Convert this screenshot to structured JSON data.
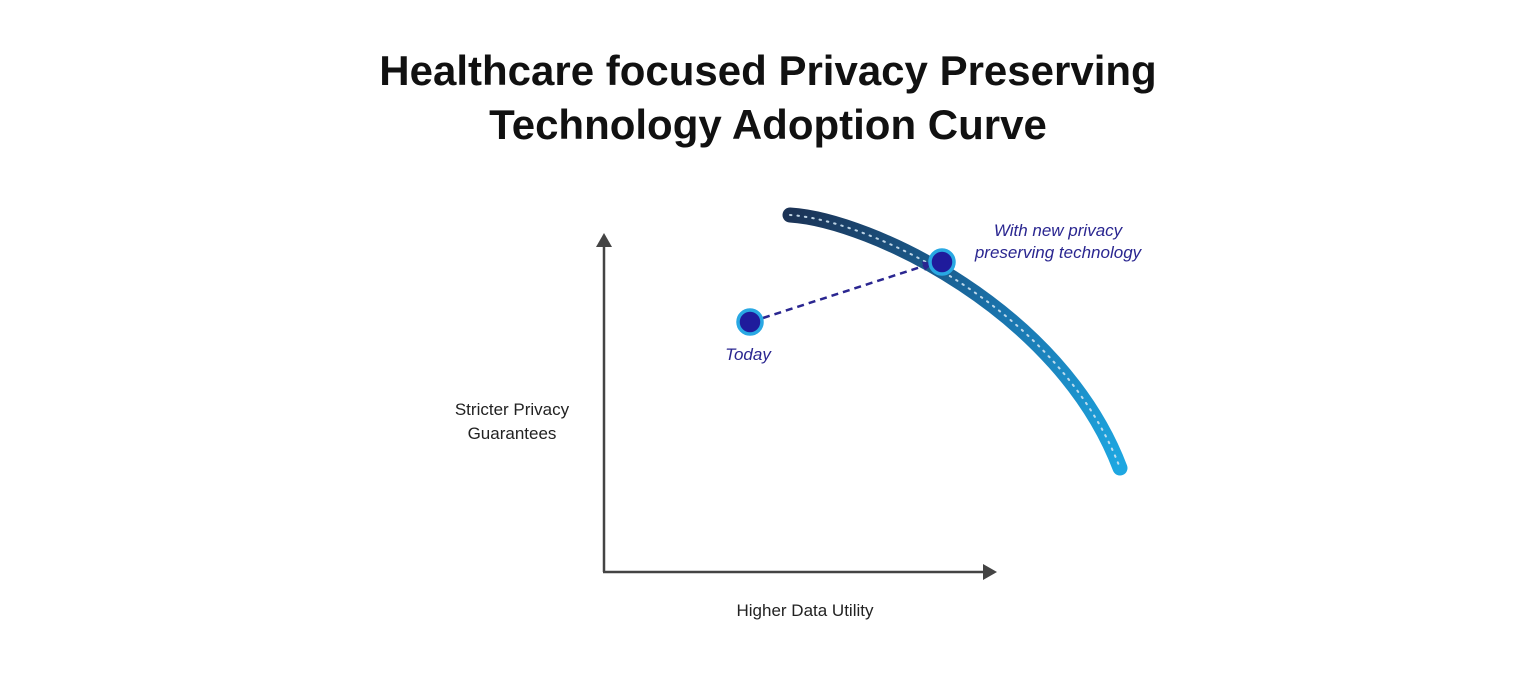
{
  "title": {
    "line1": "Healthcare focused Privacy Preserving",
    "line2": "Technology Adoption Curve"
  },
  "axes": {
    "y_label_line1": "Stricter Privacy",
    "y_label_line2": "Guarantees",
    "x_label": "Higher Data Utility"
  },
  "points": {
    "today": "Today",
    "future_line1": "With new privacy",
    "future_line2": "preserving technology"
  },
  "colors": {
    "curve_start": "#1b3356",
    "curve_end": "#1ea7e1",
    "point_fill": "#1f1b9c",
    "point_ring": "#29a8e3",
    "arrow": "#2a2690",
    "axis": "#444444"
  }
}
